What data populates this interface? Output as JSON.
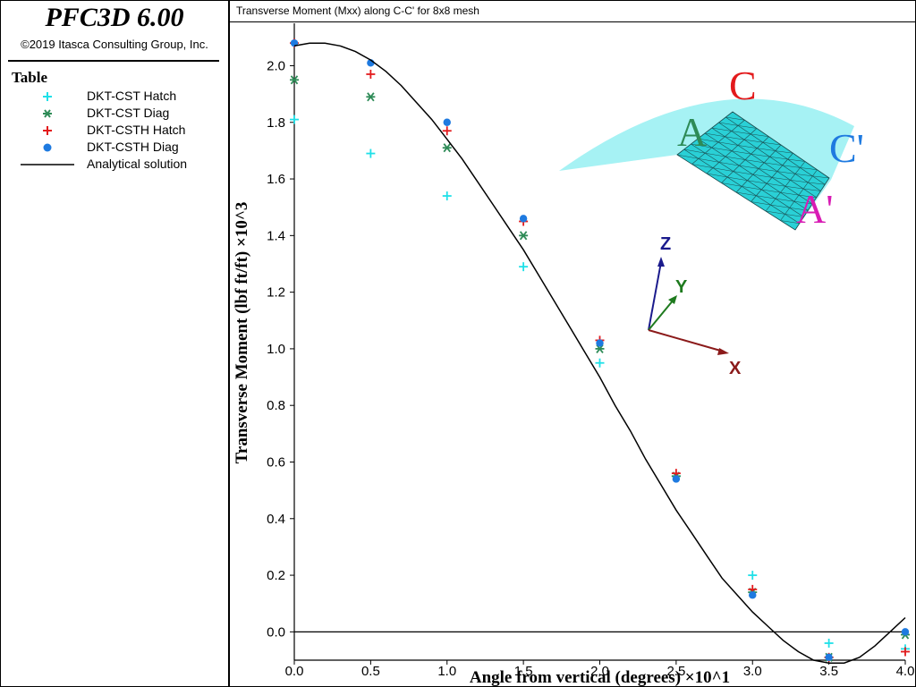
{
  "app": {
    "title": "PFC3D 6.00",
    "copyright": "©2019 Itasca Consulting Group, Inc."
  },
  "legend": {
    "heading": "Table",
    "items": [
      {
        "label": "DKT-CST Hatch",
        "marker": "plus",
        "color": "#1fe0e8"
      },
      {
        "label": "DKT-CST Diag",
        "marker": "asterisk",
        "color": "#2e8b57"
      },
      {
        "label": "DKT-CSTH Hatch",
        "marker": "plus",
        "color": "#e31a1c"
      },
      {
        "label": "DKT-CSTH Diag",
        "marker": "dot",
        "color": "#1e7ae0"
      },
      {
        "label": "Analytical solution",
        "marker": "line",
        "color": "#000000"
      }
    ]
  },
  "chart_data": {
    "type": "scatter",
    "title": "Transverse Moment (Mxx) along C-C' for 8x8 mesh",
    "xlabel": "Angle from vertical (degrees) ×10^1",
    "ylabel": "Transverse Moment (lbf ft/ft) ×10^3",
    "xlim": [
      0,
      4.0
    ],
    "ylim": [
      -0.1,
      2.15
    ],
    "x_ticks": [
      "0.0",
      "0.5",
      "1.0",
      "1.5",
      "2.0",
      "2.5",
      "3.0",
      "3.5",
      "4.0"
    ],
    "y_ticks": [
      "0.0",
      "0.2",
      "0.4",
      "0.6",
      "0.8",
      "1.0",
      "1.2",
      "1.4",
      "1.6",
      "1.8",
      "2.0"
    ],
    "grid": false,
    "legend_position": "left-panel",
    "series": [
      {
        "name": "DKT-CST Hatch",
        "marker": "plus",
        "color": "#1fe0e8",
        "x": [
          0.0,
          0.5,
          1.0,
          1.5,
          2.0,
          2.5,
          3.0,
          3.5,
          4.0
        ],
        "y": [
          1.81,
          1.69,
          1.54,
          1.29,
          0.95,
          0.55,
          0.2,
          -0.04,
          -0.06
        ]
      },
      {
        "name": "DKT-CST Diag",
        "marker": "asterisk",
        "color": "#2e8b57",
        "x": [
          0.0,
          0.5,
          1.0,
          1.5,
          2.0,
          2.5,
          3.0,
          3.5,
          4.0
        ],
        "y": [
          1.95,
          1.89,
          1.71,
          1.4,
          1.0,
          0.55,
          0.14,
          -0.09,
          -0.01
        ]
      },
      {
        "name": "DKT-CSTH Hatch",
        "marker": "plus",
        "color": "#e31a1c",
        "x": [
          0.0,
          0.5,
          1.0,
          1.5,
          2.0,
          2.5,
          3.0,
          3.5,
          4.0
        ],
        "y": [
          2.08,
          1.97,
          1.77,
          1.45,
          1.03,
          0.56,
          0.15,
          -0.09,
          -0.07
        ]
      },
      {
        "name": "DKT-CSTH Diag",
        "marker": "dot",
        "color": "#1e7ae0",
        "x": [
          0.0,
          0.5,
          1.0,
          1.5,
          2.0,
          2.5,
          3.0,
          3.5,
          4.0
        ],
        "y": [
          2.08,
          2.01,
          1.8,
          1.46,
          1.02,
          0.54,
          0.13,
          -0.09,
          0.0
        ]
      },
      {
        "name": "Analytical solution",
        "type": "line",
        "color": "#000000",
        "x": [
          0.0,
          0.1,
          0.2,
          0.3,
          0.4,
          0.5,
          0.6,
          0.7,
          0.8,
          0.9,
          1.0,
          1.1,
          1.2,
          1.3,
          1.4,
          1.5,
          1.6,
          1.7,
          1.8,
          1.9,
          2.0,
          2.1,
          2.2,
          2.3,
          2.4,
          2.5,
          2.6,
          2.7,
          2.8,
          2.9,
          3.0,
          3.1,
          3.2,
          3.3,
          3.4,
          3.5,
          3.6,
          3.7,
          3.8,
          3.9,
          4.0
        ],
        "y": [
          2.07,
          2.08,
          2.08,
          2.07,
          2.05,
          2.02,
          1.98,
          1.93,
          1.87,
          1.81,
          1.74,
          1.67,
          1.59,
          1.51,
          1.43,
          1.35,
          1.26,
          1.17,
          1.08,
          0.99,
          0.9,
          0.8,
          0.71,
          0.61,
          0.52,
          0.43,
          0.35,
          0.27,
          0.19,
          0.13,
          0.07,
          0.02,
          -0.03,
          -0.07,
          -0.1,
          -0.11,
          -0.11,
          -0.09,
          -0.05,
          0.0,
          0.05
        ]
      }
    ],
    "inset": {
      "labels": {
        "c": "C",
        "a": "A",
        "c_prime": "C'",
        "a_prime": "A'"
      },
      "label_colors": {
        "c": "#e31a1c",
        "a": "#2e8b57",
        "c_prime": "#1e7ae0",
        "a_prime": "#d81bb4"
      },
      "surface_color": "#a6f2f4",
      "mesh_color": "#2ad0d6",
      "axes": {
        "z": {
          "label": "Z",
          "color": "#1a1a8c"
        },
        "y": {
          "label": "Y",
          "color": "#1e7a1e"
        },
        "x": {
          "label": "X",
          "color": "#8b1a1a"
        }
      }
    }
  }
}
